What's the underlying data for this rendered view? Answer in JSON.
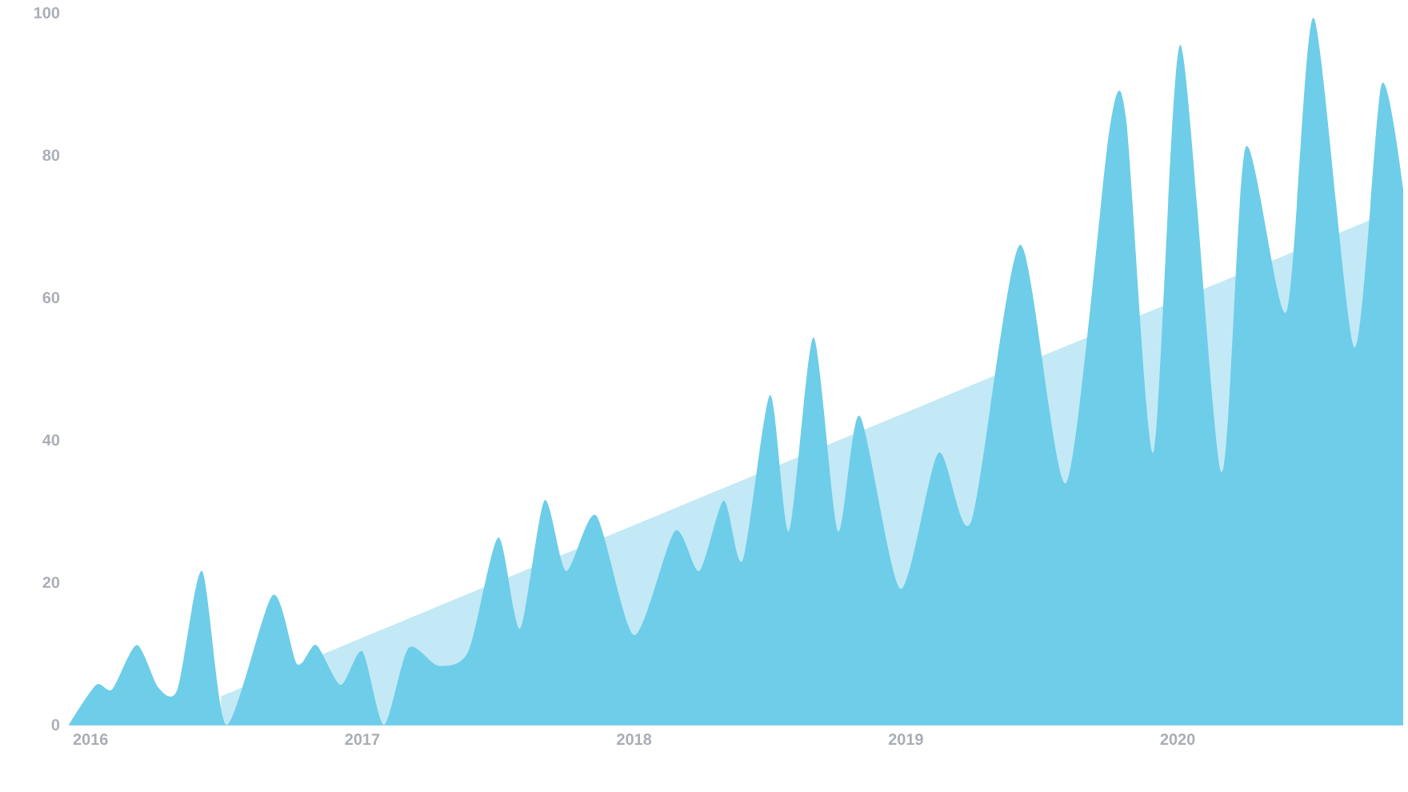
{
  "chart_data": {
    "type": "area",
    "series": [
      {
        "color": "#c2e9f5",
        "x": [
          2016.48,
          2020.83
        ],
        "values": [
          4.0,
          72.8
        ]
      },
      {
        "color": "#6ecde9",
        "x": [
          2015.92,
          2016.02,
          2016.08,
          2016.17,
          2016.25,
          2016.32,
          2016.41,
          2016.5,
          2016.67,
          2016.76,
          2016.83,
          2016.92,
          2017.0,
          2017.08,
          2017.17,
          2017.28,
          2017.39,
          2017.5,
          2017.58,
          2017.67,
          2017.75,
          2017.86,
          2018.0,
          2018.15,
          2018.24,
          2018.33,
          2018.4,
          2018.5,
          2018.57,
          2018.66,
          2018.75,
          2018.83,
          2018.98,
          2019.12,
          2019.24,
          2019.42,
          2019.59,
          2019.75,
          2019.81,
          2019.91,
          2020.01,
          2020.16,
          2020.25,
          2020.4,
          2020.5,
          2020.65,
          2020.75,
          2020.83
        ],
        "values": [
          0,
          5.6,
          5,
          11.2,
          5.2,
          5,
          21.6,
          0,
          18.2,
          8.5,
          11.2,
          5.6,
          10.3,
          0,
          10.8,
          8.3,
          10.3,
          26.3,
          13.5,
          31.5,
          21.6,
          29.4,
          12.6,
          27.2,
          21.6,
          31.5,
          23.1,
          46.3,
          27.2,
          54.4,
          27.2,
          43.4,
          19.1,
          38.2,
          28.5,
          67.4,
          34,
          83.8,
          85.2,
          38.2,
          95.5,
          35.5,
          81.1,
          58,
          99.3,
          53,
          89.9,
          75.3
        ]
      }
    ],
    "xlim": [
      2015.92,
      2020.83
    ],
    "ylim": [
      0,
      100
    ],
    "xticks": [
      2016,
      2017,
      2018,
      2019,
      2020
    ],
    "yticks": [
      0,
      20,
      40,
      60,
      80,
      100
    ]
  }
}
